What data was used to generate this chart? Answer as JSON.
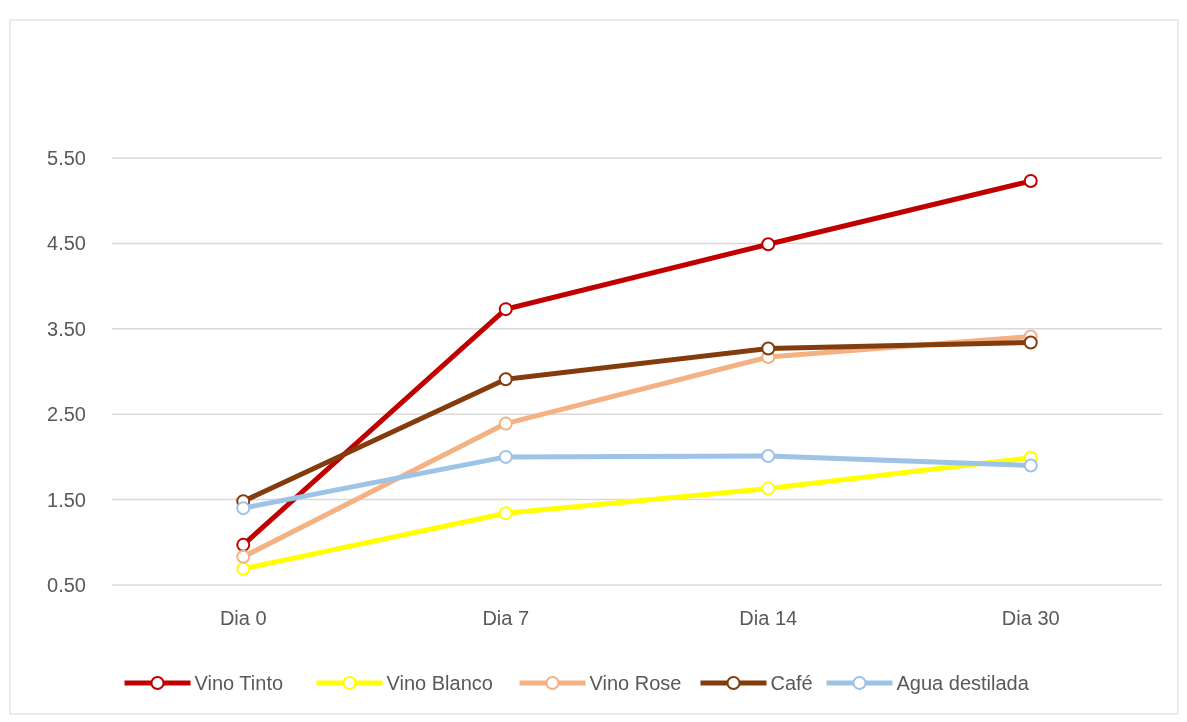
{
  "chart_data": {
    "type": "line",
    "categories": [
      "Dia 0",
      "Dia 7",
      "Dia 14",
      "Dia 30"
    ],
    "series": [
      {
        "name": "Vino Tinto",
        "color": "#c00000",
        "values": [
          0.97,
          3.73,
          4.49,
          5.23
        ]
      },
      {
        "name": "Vino Blanco",
        "color": "#ffff00",
        "values": [
          0.69,
          1.34,
          1.63,
          1.99
        ]
      },
      {
        "name": "Vino Rose",
        "color": "#f4b183",
        "values": [
          0.83,
          2.39,
          3.17,
          3.41
        ]
      },
      {
        "name": "Café",
        "color": "#843c0c",
        "values": [
          1.48,
          2.91,
          3.27,
          3.34
        ]
      },
      {
        "name": "Agua destilada",
        "color": "#9dc3e6",
        "values": [
          1.4,
          2.0,
          2.01,
          1.9
        ]
      }
    ],
    "ylim": [
      0.5,
      5.5
    ],
    "yticks": [
      {
        "value": 0.5,
        "label": "0.50"
      },
      {
        "value": 1.5,
        "label": "1.50"
      },
      {
        "value": 2.5,
        "label": "2.50"
      },
      {
        "value": 3.5,
        "label": "3.50"
      },
      {
        "value": 4.5,
        "label": "4.50"
      },
      {
        "value": 5.5,
        "label": "5.50"
      }
    ],
    "grid": "y",
    "legend": "bottom",
    "marker": "circle",
    "line_style": "solid"
  }
}
